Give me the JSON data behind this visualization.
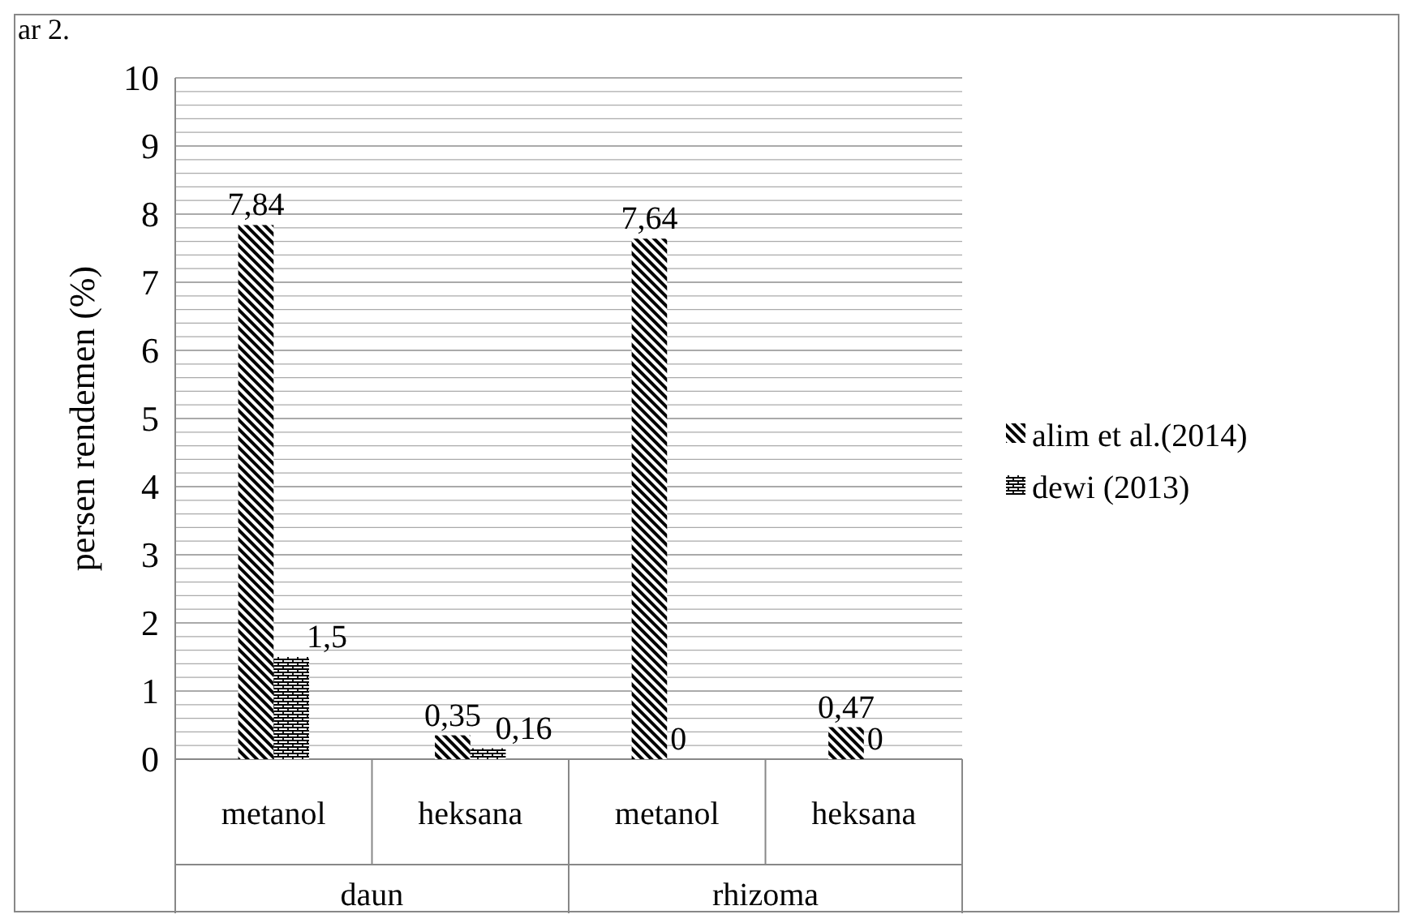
{
  "chart_data": {
    "type": "bar",
    "ylabel": "persen rendemen (%)",
    "categories": [
      "metanol",
      "heksana",
      "metanol",
      "heksana"
    ],
    "annotations": [
      "ar 2.",
      "daun",
      "rhizoma"
    ],
    "series": [
      {
        "name": "alim et al.(2014)",
        "color": "#000000",
        "values": [
          7.84,
          0.35,
          7.64,
          0.47
        ],
        "value_labels": [
          "7,84",
          "0,35",
          "7,64",
          "0,47"
        ]
      },
      {
        "name": "dewi (2013)",
        "color": "#000000",
        "values": [
          1.5,
          0.16,
          0,
          0
        ],
        "value_labels": [
          "1,5",
          "0,16",
          "0",
          "0"
        ]
      }
    ],
    "ylim": [
      0,
      10
    ],
    "yticks": [
      0,
      {
        "value": 0.2,
        "label": null
      },
      {
        "value": 0.4,
        "label": null
      },
      {
        "value": 0.6,
        "label": null
      },
      {
        "value": 0.8,
        "label": null
      },
      1,
      {
        "value": 1.2,
        "label": null
      },
      {
        "value": 1.4,
        "label": null
      },
      {
        "value": 1.6,
        "label": null
      },
      {
        "value": 1.8,
        "label": null
      },
      2,
      {
        "value": 2.2,
        "label": null
      },
      {
        "value": 2.4,
        "label": null
      },
      {
        "value": 2.6,
        "label": null
      },
      {
        "value": 2.8,
        "label": null
      },
      3,
      {
        "value": 3.2,
        "label": null
      },
      {
        "value": 3.4,
        "label": null
      },
      {
        "value": 3.6,
        "label": null
      },
      {
        "value": 3.8,
        "label": null
      },
      4,
      {
        "value": 4.2,
        "label": null
      },
      {
        "value": 4.4,
        "label": null
      },
      {
        "value": 4.6,
        "label": null
      },
      {
        "value": 4.8,
        "label": null
      },
      5,
      {
        "value": 5.2,
        "label": null
      },
      {
        "value": 5.4,
        "label": null
      },
      {
        "value": 5.6,
        "label": null
      },
      {
        "value": 5.8,
        "label": null
      },
      6,
      {
        "value": 6.2,
        "label": null
      },
      {
        "value": 6.4,
        "label": null
      },
      {
        "value": 6.6,
        "label": null
      },
      {
        "value": 6.8,
        "label": null
      },
      7,
      {
        "value": 7.2,
        "label": null
      },
      {
        "value": 7.4,
        "label": null
      },
      {
        "value": 7.6,
        "label": null
      },
      {
        "value": 7.8,
        "label": null
      },
      8,
      {
        "value": 8.2,
        "label": null
      },
      {
        "value": 8.4,
        "label": null
      },
      {
        "value": 8.6,
        "label": null
      },
      {
        "value": 8.8,
        "label": null
      },
      9,
      {
        "value": 9.2,
        "label": null
      },
      {
        "value": 9.4,
        "label": null
      },
      {
        "value": 9.6,
        "label": null
      },
      {
        "value": 9.8,
        "label": null
      },
      10
    ],
    "grid": "y",
    "legend": "right"
  }
}
